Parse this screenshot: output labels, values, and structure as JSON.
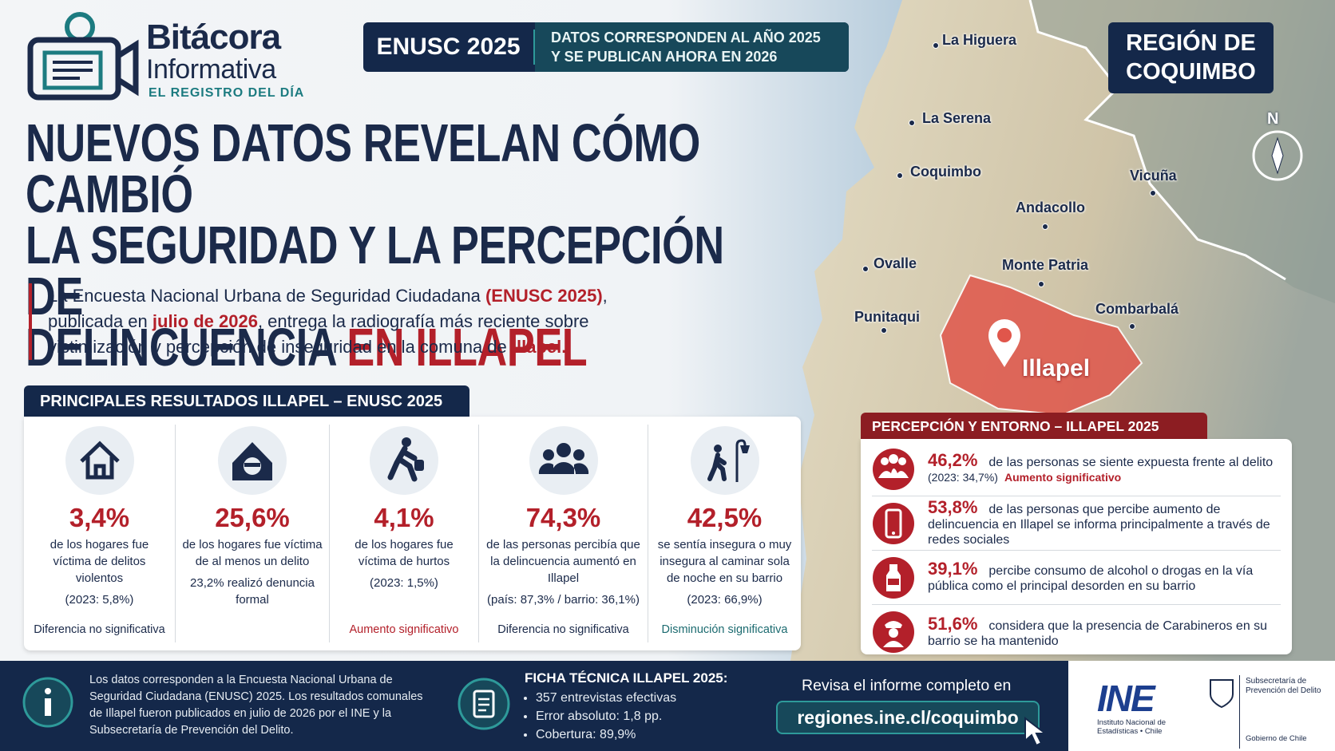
{
  "logo": {
    "title": "Bitácora",
    "subtitle": "Informativa",
    "tagline": "EL REGISTRO DEL DÍA"
  },
  "badge": {
    "label": "ENUSC 2025",
    "lines": [
      "DATOS CORRESPONDEN AL AÑO 2025",
      "Y SE PUBLICAN AHORA EN 2026"
    ]
  },
  "region": {
    "lines": [
      "REGIÓN DE",
      "COQUIMBO"
    ]
  },
  "headline": {
    "lines": [
      "NUEVOS DATOS REVELAN CÓMO CAMBIÓ",
      "LA SEGURIDAD Y LA PERCEPCIÓN DE",
      "DELINCUENCIA"
    ],
    "highlight": "EN ILLAPEL"
  },
  "intro": [
    {
      "text": "La Encuesta Nacional Urbana de Seguridad Ciudadana ",
      "emphasis": false
    },
    {
      "text": "(ENUSC 2025)",
      "emphasis": true
    },
    {
      "text": ", publicada en ",
      "emphasis": false
    },
    {
      "text": "julio de 2026",
      "emphasis": true
    },
    {
      "text": ", entrega la radiografía más reciente sobre victimización y percepción de inseguridad en la comuna de ",
      "emphasis": false
    },
    {
      "text": "Illapel.",
      "emphasis": true
    }
  ],
  "map": {
    "compass": "N",
    "cities": [
      "La Higuera",
      "La Serena",
      "Coquimbo",
      "Vicuña",
      "Andacollo",
      "Ovalle",
      "Monte Patria",
      "Punitaqui",
      "Combarbalá"
    ],
    "highlight": "Illapel"
  },
  "results": {
    "title": "PRINCIPALES RESULTADOS ILLAPEL – ENUSC 2025",
    "items": [
      {
        "value": "3,4%",
        "description": "de los hogares fue víctima de delitos violentos",
        "note": "(2023: 5,8%)",
        "status": "Diferencia no significativa",
        "status_color": "#1b2a4a"
      },
      {
        "value": "25,6%",
        "description": "de los hogares fue víctima de al menos un delito",
        "note": "23,2% realizó denuncia formal"
      },
      {
        "value": "4,1%",
        "description": "de los hogares fue víctima de hurtos",
        "note": "(2023: 1,5%)",
        "status": "Aumento significativo",
        "status_color": "#b3202a"
      },
      {
        "value": "74,3%",
        "description": "de las personas percibía que la delincuencia aumentó en Illapel",
        "note": "(país: 87,3% / barrio: 36,1%)",
        "status": "Diferencia no significativa",
        "status_color": "#1b2a4a"
      },
      {
        "value": "42,5%",
        "description": "se sentía insegura o muy insegura al caminar sola de noche en su barrio",
        "note": "(2023: 66,9%)",
        "status": "Disminución significativa",
        "status_color": "#1c6b70"
      }
    ]
  },
  "perception": {
    "title": "PERCEPCIÓN Y ENTORNO – ILLAPEL 2025",
    "items": [
      {
        "value": "46,2%",
        "text": "de las personas se siente expuesta frente al delito",
        "note": "(2023: 34,7%)",
        "status": "Aumento significativo"
      },
      {
        "value": "53,8%",
        "text": "de las personas que percibe aumento de delincuencia en Illapel se informa principalmente a través de redes sociales"
      },
      {
        "value": "39,1%",
        "text": "percibe consumo de alcohol o drogas en la vía pública como el principal desorden en su barrio"
      },
      {
        "value": "51,6%",
        "text": "considera que la presencia de Carabineros en su barrio se ha mantenido"
      }
    ]
  },
  "footer": {
    "info": "Los datos corresponden a la Encuesta Nacional Urbana de Seguridad Ciudadana (ENUSC) 2025. Los resultados comunales de Illapel fueron publicados en julio de 2026 por el INE y la Subsecretaría de Prevención del Delito.",
    "sheet_title": "FICHA TÉCNICA ILLAPEL 2025:",
    "sheet_items": [
      "357 entrevistas efectivas",
      "Error absoluto: 1,8 pp.",
      "Cobertura: 89,9%"
    ],
    "cta": "Revisa el informe completo en",
    "url": "regiones.ine.cl/coquimbo",
    "ine_logo": "INE",
    "ine_name": "Instituto Nacional de Estadísticas • Chile",
    "spd_name": "Subsecretaría de Prevención del Delito",
    "gov": "Gobierno de Chile"
  }
}
